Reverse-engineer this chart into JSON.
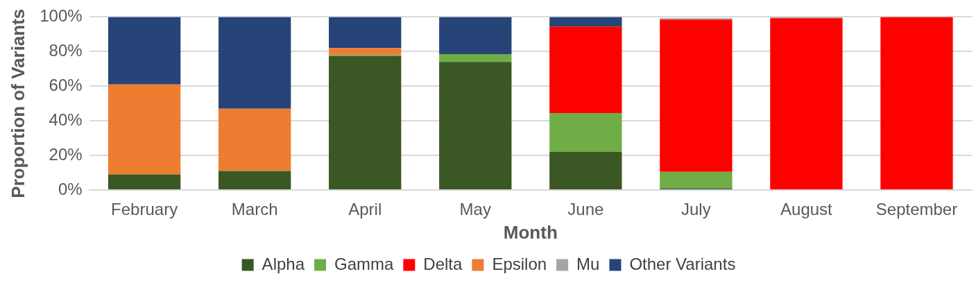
{
  "chart_data": {
    "type": "bar",
    "stacked": true,
    "xlabel": "Month",
    "ylabel": "Proportion of Variants",
    "categories": [
      "February",
      "March",
      "April",
      "May",
      "June",
      "July",
      "August",
      "September"
    ],
    "series": [
      {
        "name": "Alpha",
        "color": "#3a5724",
        "values": [
          9,
          11,
          77.5,
          74,
          22,
          1,
          0,
          0
        ]
      },
      {
        "name": "Gamma",
        "color": "#70ad47",
        "values": [
          0,
          0,
          0.5,
          4.5,
          22.5,
          9.5,
          0,
          0
        ]
      },
      {
        "name": "Delta",
        "color": "#ff0000",
        "values": [
          0,
          0,
          0,
          0,
          50,
          88,
          99.3,
          100
        ]
      },
      {
        "name": "Epsilon",
        "color": "#ed7d31",
        "values": [
          52,
          36,
          4,
          0,
          0,
          0,
          0,
          0
        ]
      },
      {
        "name": "Mu",
        "color": "#a5a5a5",
        "values": [
          0,
          0,
          0,
          0,
          0,
          0.8,
          0.5,
          0
        ]
      },
      {
        "name": "Other Variants",
        "color": "#264478",
        "values": [
          39,
          53,
          18,
          21.5,
          5.5,
          null,
          null,
          0
        ]
      }
    ],
    "ylim": [
      0,
      100
    ],
    "yticks": [
      {
        "value": 0,
        "label": "0%"
      },
      {
        "value": 20,
        "label": "20%"
      },
      {
        "value": 40,
        "label": "40%"
      },
      {
        "value": 60,
        "label": "60%"
      },
      {
        "value": 80,
        "label": "80%"
      },
      {
        "value": 100,
        "label": "100%"
      }
    ],
    "grid": "y",
    "legend": "bottom"
  }
}
